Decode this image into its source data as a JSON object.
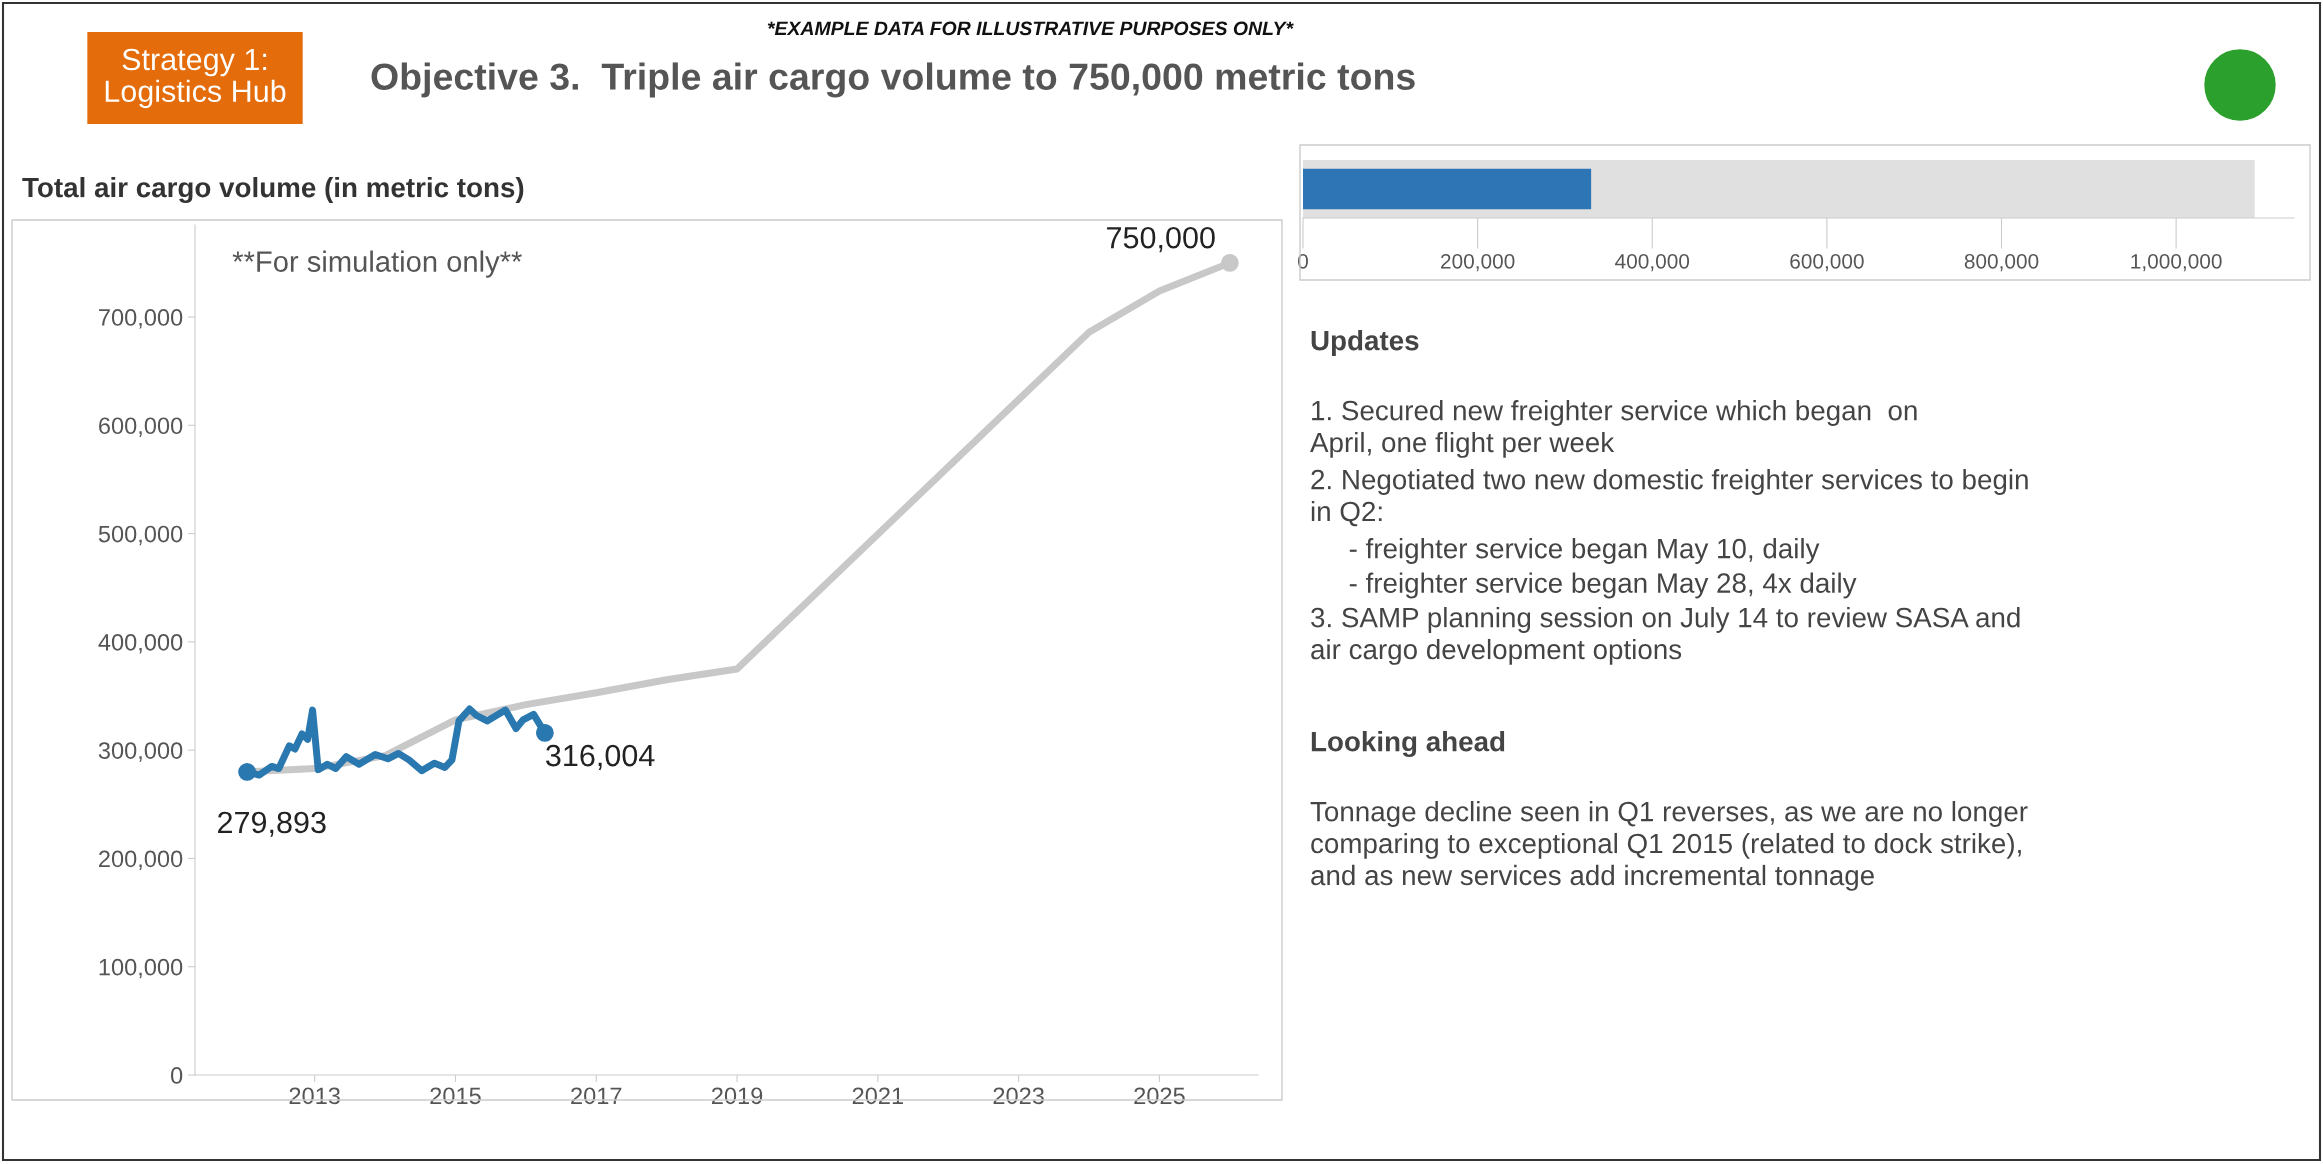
{
  "chart_data": [
    {
      "type": "other",
      "title": "Objective 3.  Triple air cargo volume to 750,000 metric tons",
      "subtitle": "*EXAMPLE DATA FOR ILLUSTRATIVE PURPOSES ONLY*",
      "annotations": [
        "Strategy 1:\nLogistics Hub"
      ]
    },
    {
      "type": "line",
      "title": "Total air cargo volume (in metric tons)",
      "xlim": [
        2011.3,
        2026.4
      ],
      "xticks": [
        2013,
        2015,
        2017,
        2019,
        2021,
        2023,
        2025
      ],
      "ylim": [
        0,
        785000
      ],
      "yticks": [
        0,
        {
          "value": 100000,
          "label": "100,000"
        },
        {
          "value": 200000,
          "label": "200,000"
        },
        {
          "value": 300000,
          "label": "300,000"
        },
        {
          "value": 400000,
          "label": "400,000"
        },
        {
          "value": 500000,
          "label": "500,000"
        },
        {
          "value": 600000,
          "label": "600,000"
        },
        {
          "value": 700000,
          "label": "700,000"
        }
      ],
      "grid": false,
      "legend": false,
      "annotations": [
        "**For simulation only**"
      ],
      "series": [
        {
          "type": "line",
          "color": "#c8c8c8",
          "x": [
            2012.06,
            2013,
            2014,
            2015,
            2016,
            2017,
            2018,
            2019,
            2024,
            2025,
            2026
          ],
          "values": [
            280000,
            283000,
            295000,
            328000,
            342000,
            353000,
            365000,
            375000,
            686000,
            724000,
            750000
          ]
        },
        {
          "type": "line",
          "color": "#2a78b0",
          "x": [
            2012.04,
            2012.21,
            2012.39,
            2012.49,
            2012.64,
            2012.72,
            2012.82,
            2012.9,
            2012.97,
            2013.05,
            2013.18,
            2013.3,
            2013.45,
            2013.63,
            2013.86,
            2014.04,
            2014.19,
            2014.34,
            2014.52,
            2014.7,
            2014.85,
            2014.95,
            2015.05,
            2015.2,
            2015.3,
            2015.45,
            2015.71,
            2015.86,
            2015.96,
            2016.11,
            2016.27
          ],
          "values": [
            280000,
            277000,
            285000,
            283000,
            304000,
            301000,
            315000,
            310000,
            337000,
            282000,
            287000,
            283000,
            294000,
            287000,
            296000,
            292000,
            297000,
            291000,
            281000,
            288000,
            284000,
            291000,
            327000,
            338000,
            332000,
            327000,
            337000,
            320000,
            328000,
            333000,
            316000
          ]
        },
        {
          "type": "scatter",
          "color": "#2a78b0",
          "x": [
            2012.04,
            2016.27
          ],
          "values": [
            279893,
            316004
          ],
          "value_labels": [
            "279,893",
            "316,004"
          ]
        },
        {
          "type": "scatter",
          "color": "#c8c8c8",
          "x": [
            2026
          ],
          "values": [
            750000
          ],
          "value_labels": [
            "750,000"
          ]
        }
      ]
    },
    {
      "type": "bar",
      "orientation": "horizontal",
      "categories": [
        null
      ],
      "xlim": [
        0,
        1135000
      ],
      "xticks": [
        0,
        {
          "value": 200000,
          "label": "200,000"
        },
        {
          "value": 400000,
          "label": "400,000"
        },
        {
          "value": 600000,
          "label": "600,000"
        },
        {
          "value": 800000,
          "label": "800,000"
        },
        {
          "value": 1000000,
          "label": "1,000,000"
        }
      ],
      "tick_labels": "x",
      "bands": [
        {
          "axis": "x",
          "from": 0,
          "to": 1090000,
          "color": "#e0e0e0"
        }
      ],
      "series": [
        {
          "color": "#2e75b6",
          "values": [
            330000
          ]
        }
      ]
    },
    {
      "type": "other",
      "title": "Updates",
      "annotations": [
        "1. Secured new freighter service which began  on\nApril, one flight per week",
        "2. Negotiated two new domestic freighter services to begin\nin Q2:",
        "     - freighter service began May 10, daily",
        "     - freighter service began May 28, 4x daily",
        "3. SAMP planning session on July 14 to review SASA and\nair cargo development options"
      ]
    },
    {
      "type": "other",
      "title": "Looking ahead",
      "annotations": [
        "Tonnage decline seen in Q1 reverses, as we are no longer\ncomparing to exceptional Q1 2015 (related to dock strike),\nand as new services add incremental tonnage"
      ]
    }
  ]
}
